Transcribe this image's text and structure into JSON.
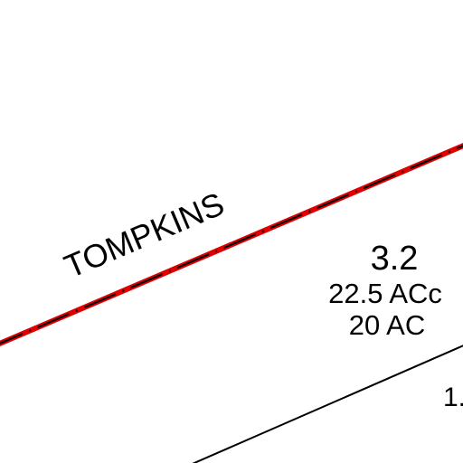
{
  "map": {
    "county_label": "TOMPKINS",
    "parcel": {
      "id": "3.2",
      "acreage_calculated": "22.5 ACc",
      "acreage_deeded": "20 AC"
    },
    "adjacent_parcel_partial_label": "1.",
    "colors": {
      "county_boundary_red": "#e00000",
      "county_boundary_black": "#000000",
      "parcel_line": "#000000",
      "background": "#ffffff"
    }
  }
}
